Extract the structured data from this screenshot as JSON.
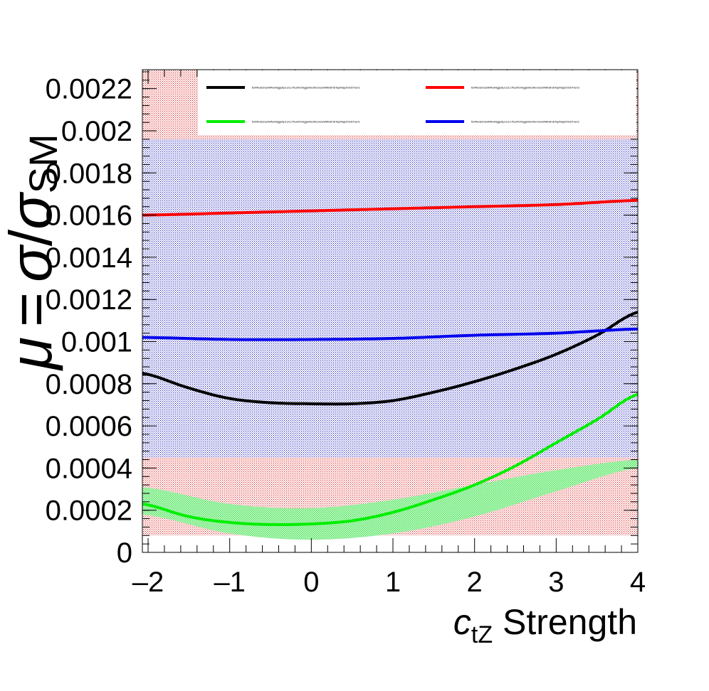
{
  "chart_data": {
    "type": "line",
    "xlabel": {
      "symbol": "c",
      "subscript": "tZ",
      "suffix": " Strength"
    },
    "ylabel": {
      "mu": "μ",
      "eq": "=",
      "sigma": "σ",
      "slash": "/",
      "sigma_sm": "σ",
      "sm": "SM"
    },
    "xlim": [
      -2.07,
      4
    ],
    "ylim": [
      0,
      0.00229
    ],
    "xticks": [
      "–2",
      "–1",
      "0",
      "1",
      "2",
      "3",
      "4"
    ],
    "xtick_values": [
      -2,
      -1,
      0,
      1,
      2,
      3,
      4
    ],
    "yticks": [
      "0",
      "0.0002",
      "0.0004",
      "0.0006",
      "0.0008",
      "0.001",
      "0.0012",
      "0.0014",
      "0.0016",
      "0.0018",
      "0.002",
      "0.0022"
    ],
    "ytick_values": [
      0,
      0.0002,
      0.0004,
      0.0006,
      0.0008,
      0.001,
      0.0012,
      0.0014,
      0.0016,
      0.0018,
      0.002,
      0.0022
    ],
    "bands": [
      {
        "name": "red-band",
        "color": "#ff4444",
        "x": [
          -2.07,
          4
        ],
        "lower": [
          8e-05,
          8e-05
        ],
        "upper": [
          0.00229,
          0.00229
        ]
      },
      {
        "name": "blue-band",
        "color": "#3333cc",
        "x": [
          -2.07,
          4
        ],
        "lower": [
          0.00045,
          0.00045
        ],
        "upper": [
          0.00196,
          0.00196
        ]
      },
      {
        "name": "green-band",
        "color": "#55ee66",
        "x": [
          -2.07,
          -1,
          0,
          1,
          2,
          3,
          4
        ],
        "lower": [
          0.00018,
          9e-05,
          6e-05,
          9e-05,
          0.00017,
          0.00029,
          0.0004
        ],
        "upper": [
          0.00031,
          0.00023,
          0.00021,
          0.00025,
          0.00032,
          0.00039,
          0.00044
        ]
      }
    ],
    "series": [
      {
        "name": "ttz4NoSchanWNoHiggs0p1UL17testV2HggsInterferenceWithdim6TopMap20GSTrun1",
        "color": "#000000",
        "x": [
          -2.07,
          -1.5,
          -1,
          -0.5,
          0,
          0.5,
          1,
          1.5,
          2,
          2.5,
          3,
          3.5,
          4
        ],
        "y": [
          0.00085,
          0.00078,
          0.00073,
          0.00071,
          0.000705,
          0.000705,
          0.00072,
          0.00076,
          0.00081,
          0.00087,
          0.00094,
          0.00103,
          0.00114
        ]
      },
      {
        "name": "ttz4NoSchanWNoHiggs0p1UL17testV2HggsInterferenceWithdim6TopMap20GSTrun3",
        "color": "#ff0000",
        "x": [
          -2.07,
          -1,
          0,
          1,
          2,
          3,
          4
        ],
        "y": [
          0.0016,
          0.00161,
          0.00162,
          0.00163,
          0.00164,
          0.00165,
          0.00167
        ]
      },
      {
        "name": "ttz4NoSchanWNoHiggs0p1UL17testV2HggsInterferenceWithdim6TopMap20GSTrun1",
        "color": "#00ee00",
        "x": [
          -2.07,
          -1.5,
          -1,
          -0.5,
          0,
          0.5,
          1,
          1.5,
          2,
          2.5,
          3,
          3.5,
          4
        ],
        "y": [
          0.00023,
          0.00017,
          0.000142,
          0.000132,
          0.000135,
          0.00015,
          0.00019,
          0.00025,
          0.00032,
          0.00041,
          0.00052,
          0.00063,
          0.00075
        ]
      },
      {
        "name": "ttz4NoSchanWNoHiggs0p1UL17testV2HggsInterferenceWithdim6TopMap20GSTrun2",
        "color": "#0000ee",
        "x": [
          -2.07,
          -1,
          0,
          1,
          2,
          3,
          4
        ],
        "y": [
          0.00102,
          0.00101,
          0.00101,
          0.001015,
          0.00103,
          0.00104,
          0.00106
        ]
      }
    ]
  }
}
